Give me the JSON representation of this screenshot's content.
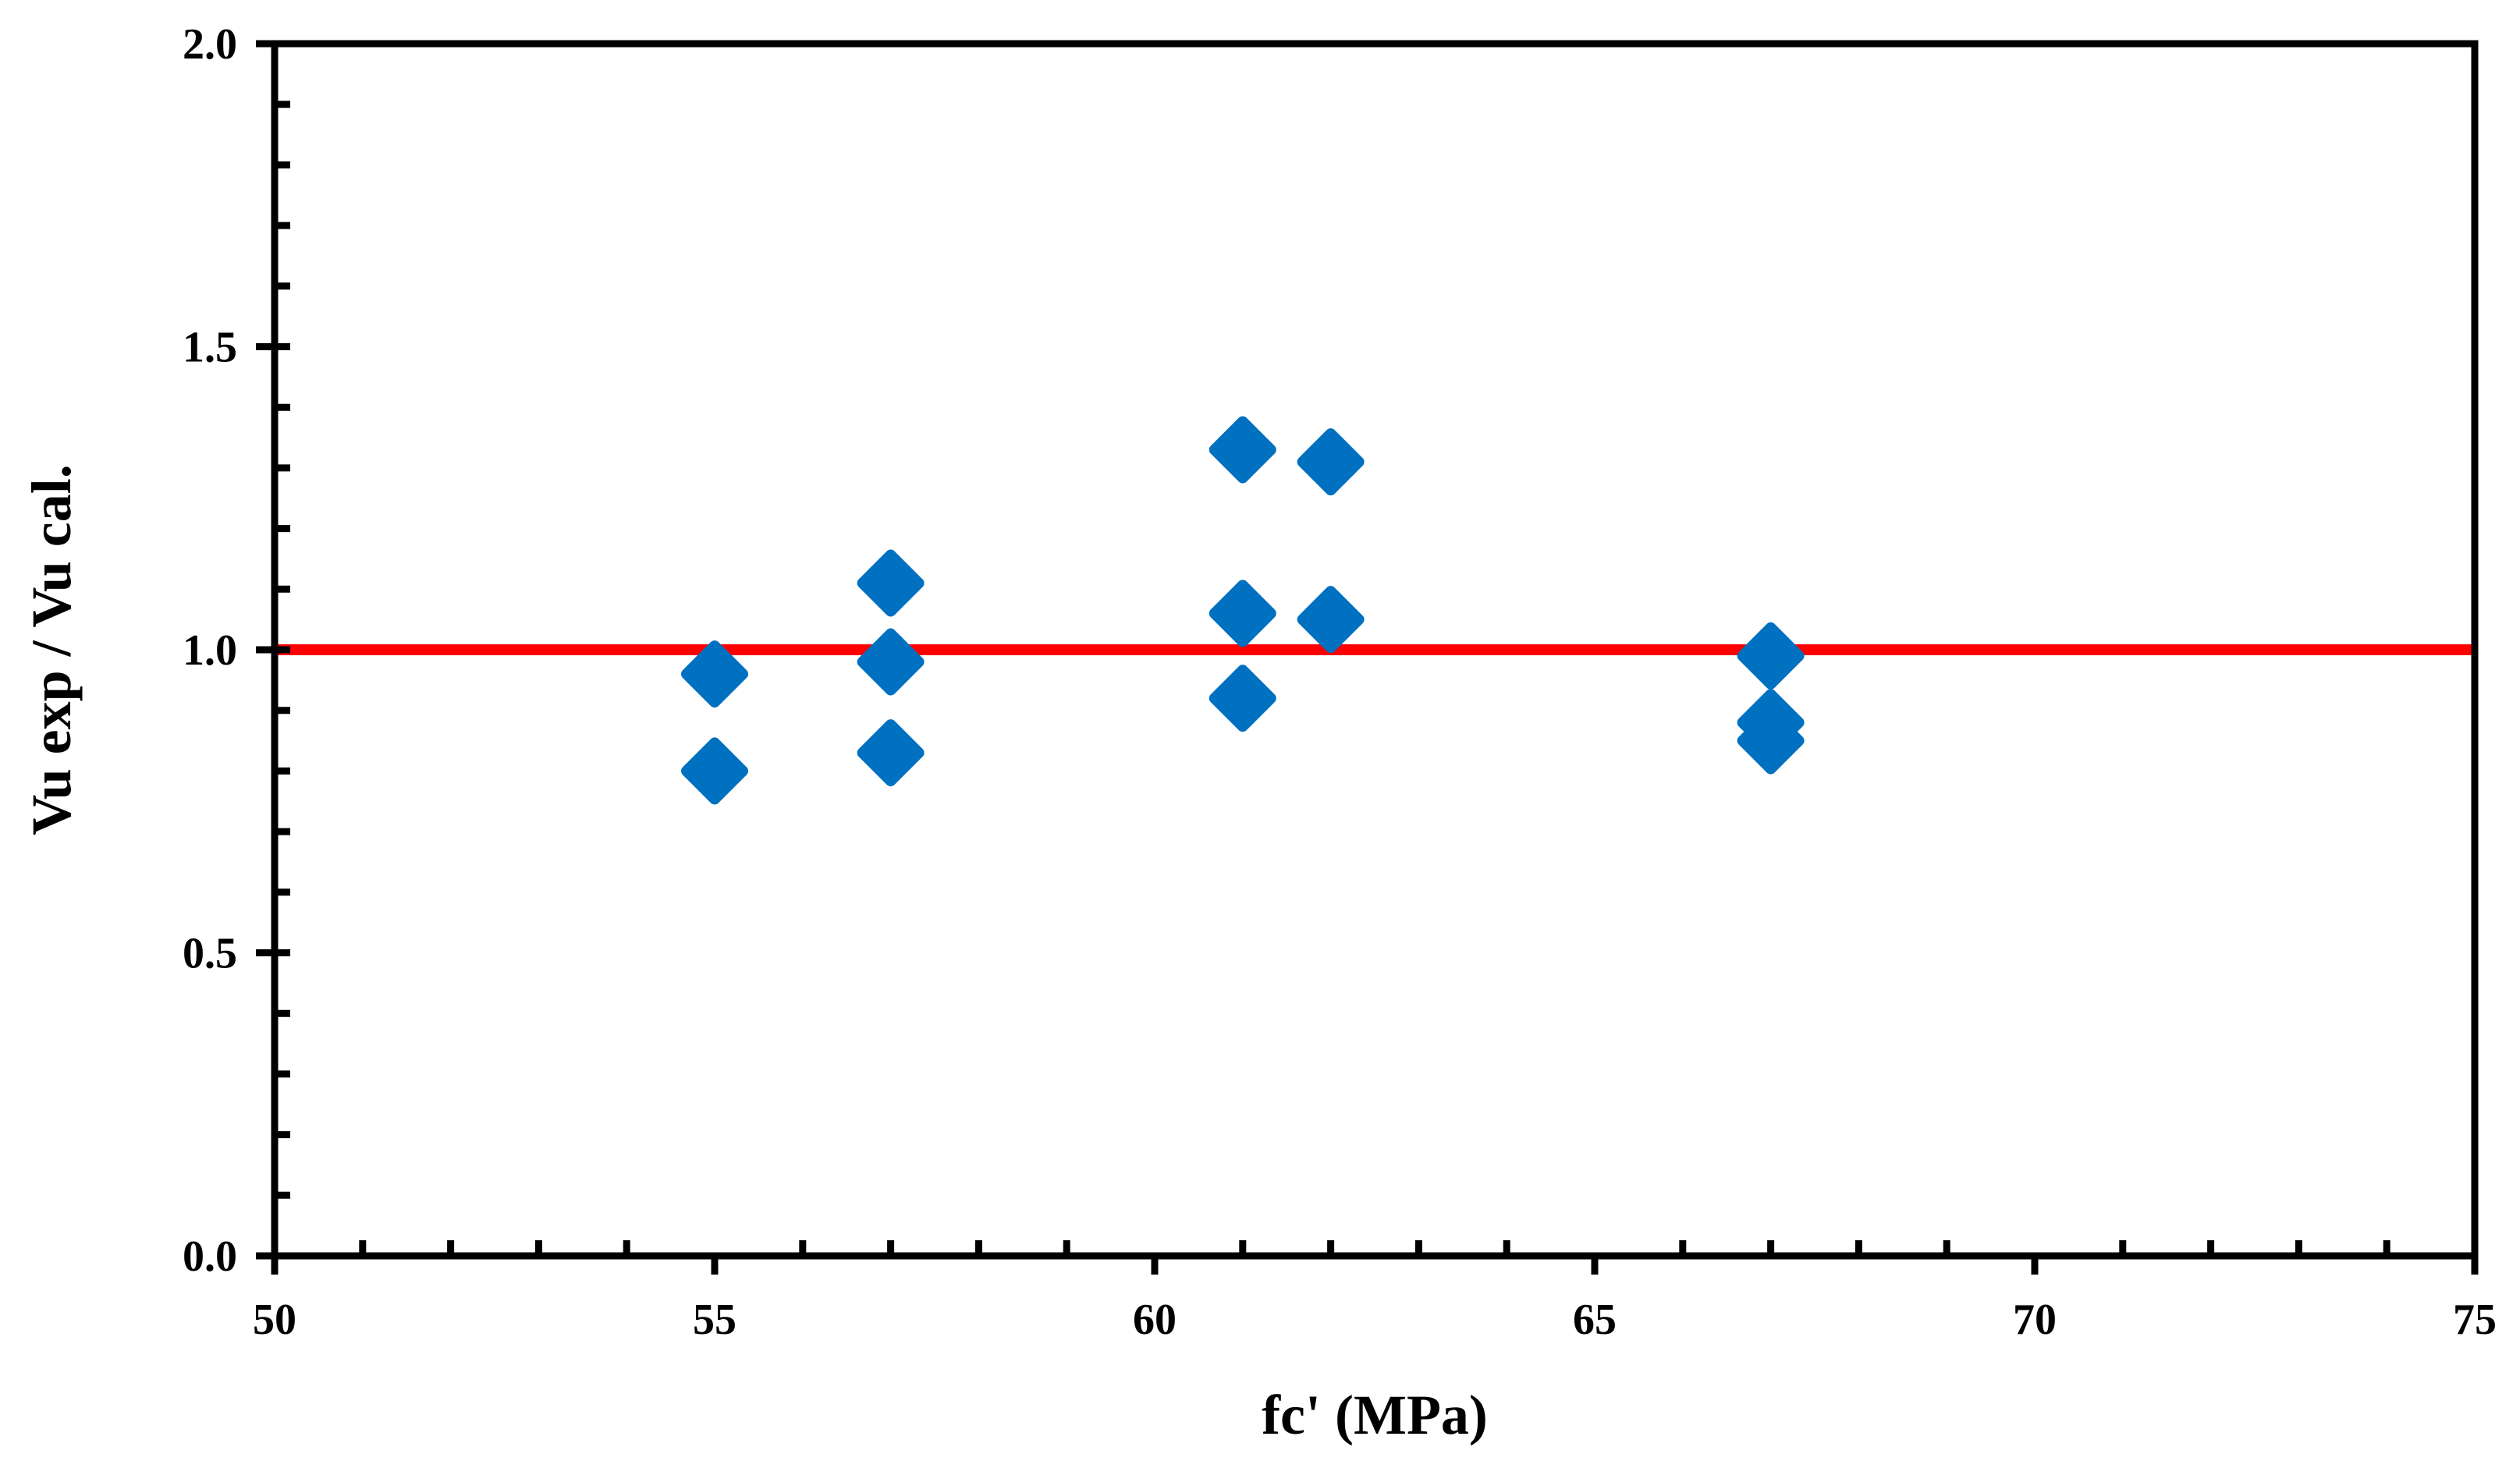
{
  "chart_data": {
    "type": "scatter",
    "title": "",
    "xlabel": "fc' (MPa)",
    "ylabel": "Vu exp / Vu cal.",
    "xlim": [
      50,
      75
    ],
    "ylim": [
      0.0,
      2.0
    ],
    "x_ticks": [
      "50",
      "55",
      "60",
      "65",
      "70",
      "75"
    ],
    "y_ticks": [
      "0.0",
      "0.5",
      "1.0",
      "1.5",
      "2.0"
    ],
    "grid": false,
    "legend": "none",
    "series": [
      {
        "color": "#0070C0",
        "marker": "diamond",
        "points": [
          {
            "x": 55,
            "y": 0.96
          },
          {
            "x": 55,
            "y": 0.8
          },
          {
            "x": 57,
            "y": 1.11
          },
          {
            "x": 57,
            "y": 0.98
          },
          {
            "x": 57,
            "y": 0.83
          },
          {
            "x": 61,
            "y": 1.33
          },
          {
            "x": 61,
            "y": 1.06
          },
          {
            "x": 61,
            "y": 0.92
          },
          {
            "x": 62,
            "y": 1.31
          },
          {
            "x": 62,
            "y": 1.05
          },
          {
            "x": 67,
            "y": 0.99
          },
          {
            "x": 67,
            "y": 0.88
          },
          {
            "x": 67,
            "y": 0.85
          }
        ]
      }
    ],
    "reference_line": {
      "y": 1.0,
      "color": "#FF0000"
    }
  }
}
